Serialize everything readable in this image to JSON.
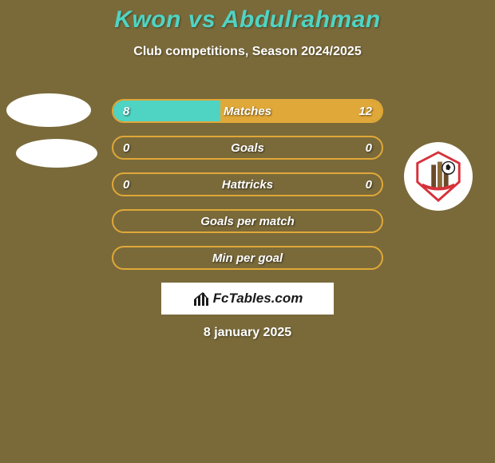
{
  "background_color": "#7a6a3a",
  "title": {
    "text": "Kwon vs Abdulrahman",
    "color": "#4fd4c4",
    "fontsize": 30
  },
  "subtitle": {
    "text": "Club competitions, Season 2024/2025",
    "fontsize": 16
  },
  "stat_rows": [
    {
      "label": "Matches",
      "left": "8",
      "right": "12",
      "left_pct": 40,
      "right_pct": 60
    },
    {
      "label": "Goals",
      "left": "0",
      "right": "0",
      "left_pct": 0,
      "right_pct": 0
    },
    {
      "label": "Hattricks",
      "left": "0",
      "right": "0",
      "left_pct": 0,
      "right_pct": 0
    },
    {
      "label": "Goals per match",
      "left": "",
      "right": "",
      "left_pct": 0,
      "right_pct": 0
    },
    {
      "label": "Min per goal",
      "left": "",
      "right": "",
      "left_pct": 0,
      "right_pct": 0
    }
  ],
  "row_style": {
    "border_color": "#e0a838",
    "fill_left_color": "#4fd4c4",
    "fill_right_color": "#e0a838",
    "label_fontsize": 15,
    "value_fontsize": 15
  },
  "avatars": {
    "left_1_bg": "#ffffff",
    "left_2_bg": "#ffffff",
    "right_bg": "#ffffff",
    "crest_primary": "#d6323a",
    "crest_secondary": "#f2c94c",
    "crest_accent": "#2a7a3a"
  },
  "brand": {
    "text": "FcTables.com",
    "fontsize": 17,
    "icon_color": "#1a1a1a"
  },
  "date": {
    "text": "8 january 2025",
    "fontsize": 16
  }
}
